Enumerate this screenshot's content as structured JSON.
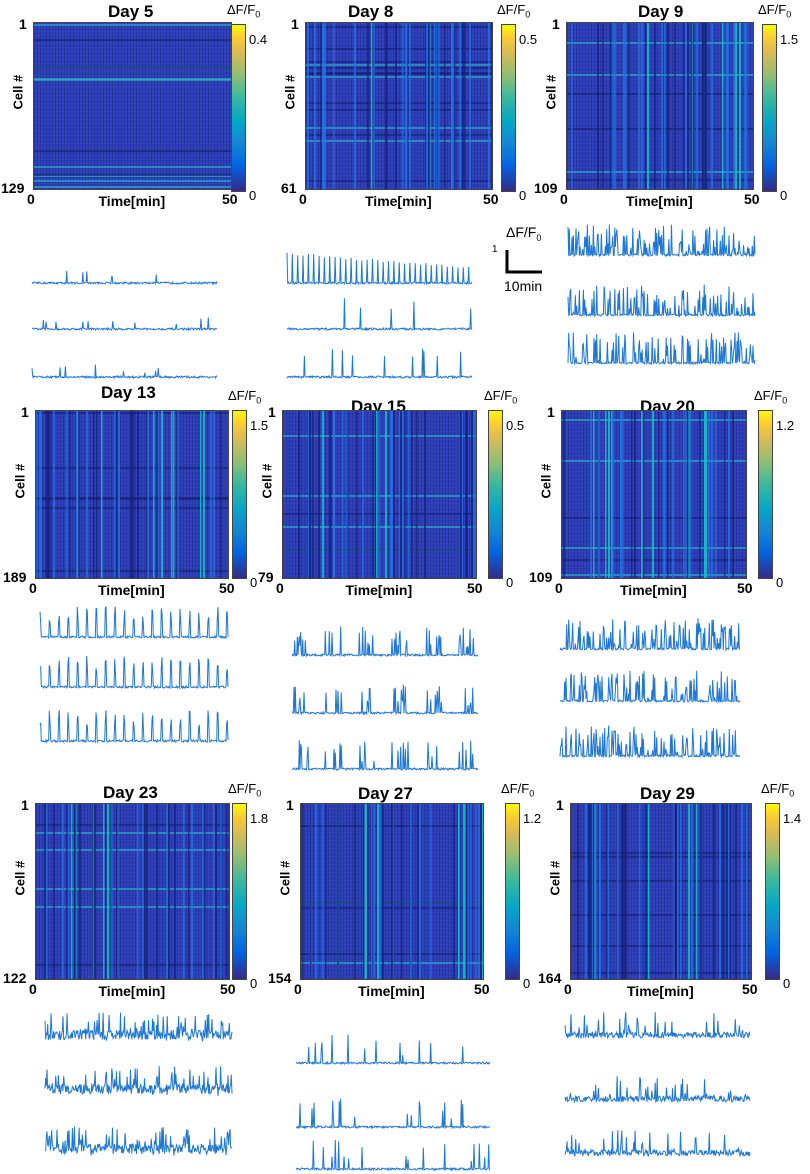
{
  "colorbar_label": "ΔF/F",
  "colorbar_sub": "0",
  "ylabel": "Cell #",
  "xlabel": "Time[min]",
  "x_start": "0",
  "x_end": "50",
  "cell_start": "1",
  "cb_zero": "0",
  "trace_color": "#1f77d4",
  "scalebar": {
    "title": "ΔF/F",
    "sub": "0",
    "value": "1",
    "time": "10min"
  },
  "chart_data": [
    {
      "type": "heatmap",
      "title": "Day 5",
      "cells": 129,
      "xlim": [
        0,
        50
      ],
      "cmax": 0.4,
      "cmax_label": "0.4",
      "cells_label": "129"
    },
    {
      "type": "heatmap",
      "title": "Day 8",
      "cells": 61,
      "xlim": [
        0,
        50
      ],
      "cmax": 0.5,
      "cmax_label": "0.5",
      "cells_label": "61"
    },
    {
      "type": "heatmap",
      "title": "Day 9",
      "cells": 109,
      "xlim": [
        0,
        50
      ],
      "cmax": 1.5,
      "cmax_label": "1.5",
      "cells_label": "109"
    },
    {
      "type": "heatmap",
      "title": "Day 13",
      "cells": 189,
      "xlim": [
        0,
        50
      ],
      "cmax": 1.5,
      "cmax_label": "1.5",
      "cells_label": "189"
    },
    {
      "type": "heatmap",
      "title": "Day 15",
      "cells": 79,
      "xlim": [
        0,
        50
      ],
      "cmax": 0.5,
      "cmax_label": "0.5",
      "cells_label": "79"
    },
    {
      "type": "heatmap",
      "title": "Day 20",
      "cells": 109,
      "xlim": [
        0,
        50
      ],
      "cmax": 1.2,
      "cmax_label": "1.2",
      "cells_label": "109"
    },
    {
      "type": "heatmap",
      "title": "Day 23",
      "cells": 122,
      "xlim": [
        0,
        50
      ],
      "cmax": 1.8,
      "cmax_label": "1.8",
      "cells_label": "122"
    },
    {
      "type": "heatmap",
      "title": "Day 27",
      "cells": 154,
      "xlim": [
        0,
        50
      ],
      "cmax": 1.2,
      "cmax_label": "1.2",
      "cells_label": "154"
    },
    {
      "type": "heatmap",
      "title": "Day 29",
      "cells": 164,
      "xlim": [
        0,
        50
      ],
      "cmax": 1.4,
      "cmax_label": "1.4",
      "cells_label": "164"
    }
  ]
}
